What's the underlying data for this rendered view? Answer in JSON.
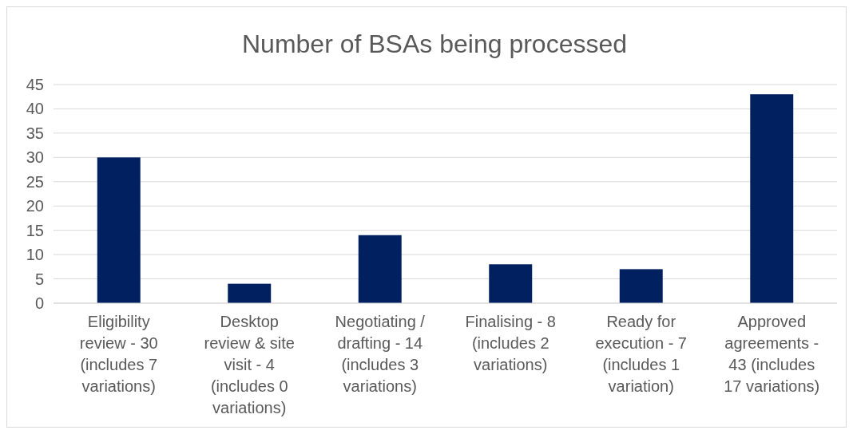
{
  "chart_data": {
    "type": "bar",
    "title": "Number of BSAs being processed",
    "categories": [
      "Eligibility review - 30 (includes 7 variations)",
      "Desktop review & site visit - 4 (includes 0 variations)",
      "Negotiating / drafting - 14 (includes 3 variations)",
      "Finalising - 8 (includes 2 variations)",
      "Ready for execution - 7 (includes 1 variation)",
      "Approved agreements - 43 (includes 17 variations)"
    ],
    "values": [
      30,
      4,
      14,
      8,
      7,
      43
    ],
    "color": "#002060",
    "ylim": [
      0,
      45
    ],
    "yticks": [
      0,
      5,
      10,
      15,
      20,
      25,
      30,
      35,
      40,
      45
    ],
    "grid": "y"
  }
}
